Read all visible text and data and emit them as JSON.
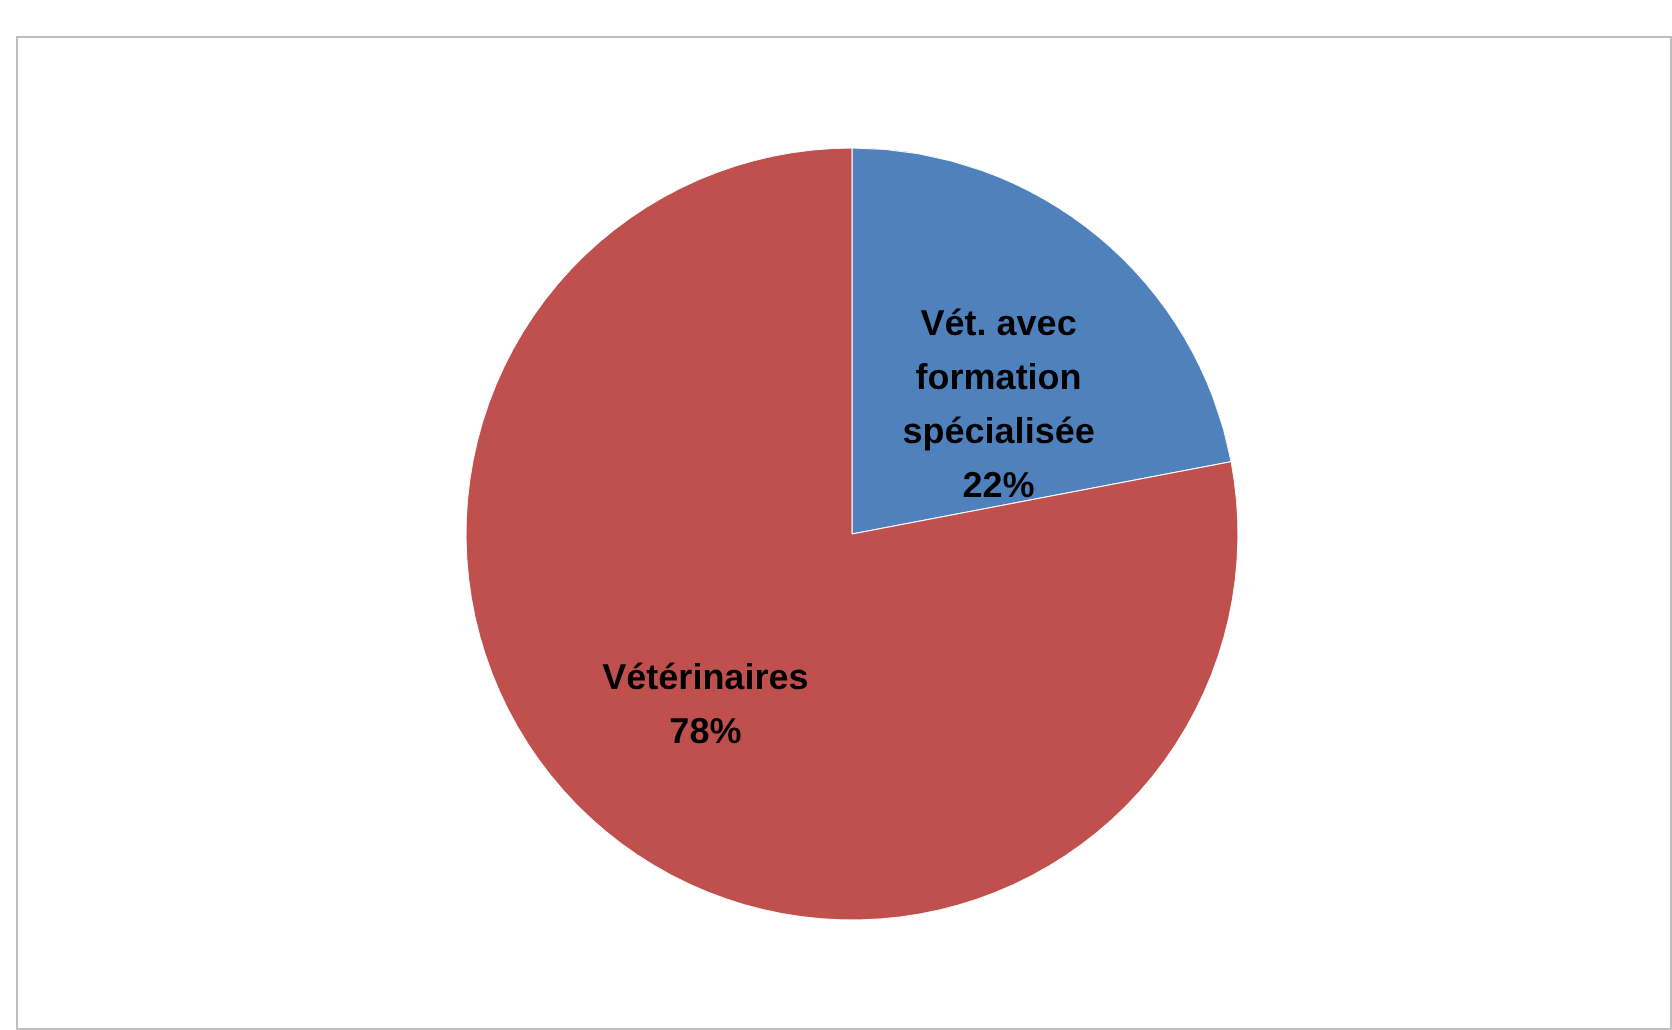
{
  "chart_data": {
    "type": "pie",
    "categories": [
      "Vét. avec formation spécialisée",
      "Vétérinaires"
    ],
    "values": [
      22,
      78
    ],
    "colors": [
      "#4f81bd",
      "#c0504d"
    ],
    "value_labels": [
      "22%",
      "78%"
    ]
  }
}
